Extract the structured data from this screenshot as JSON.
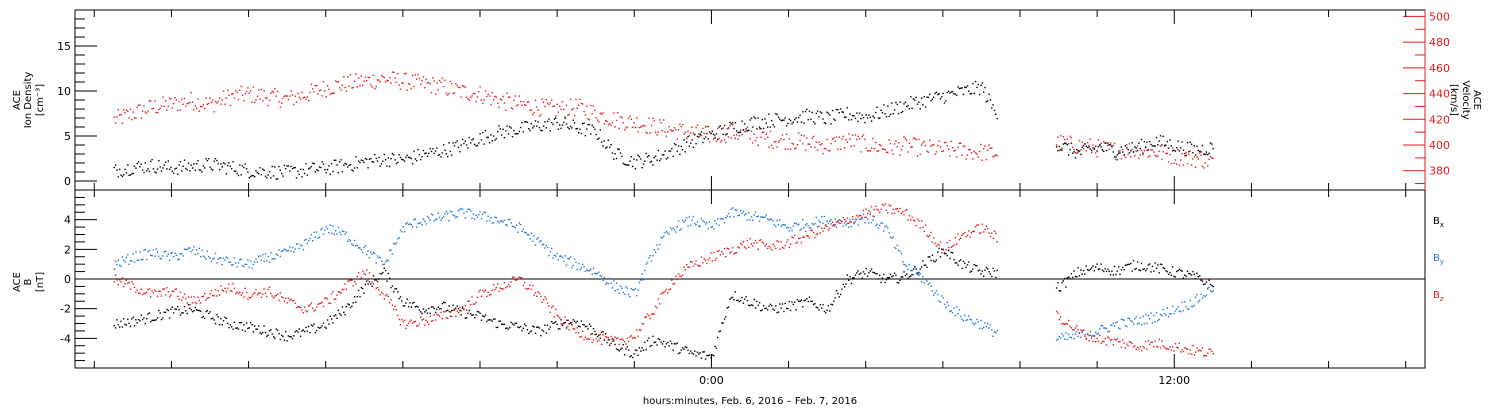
{
  "chart_data": [
    {
      "type": "scatter",
      "panel": "top",
      "ylabel_lines": [
        "ACE",
        "Ion Density",
        "[cm⁻³]"
      ],
      "y2label_lines": [
        "ACE",
        "Velocity",
        "[km/s]"
      ],
      "ylim": [
        -1,
        19
      ],
      "yticks": [
        0,
        5,
        10,
        15
      ],
      "y2lim": [
        365,
        505
      ],
      "y2ticks": [
        380,
        400,
        420,
        440,
        460,
        480,
        500
      ],
      "y2_color": "#e41a1c",
      "series": [
        {
          "color": "#000000",
          "axis": "left",
          "x": [
            -15.5,
            -15.0,
            -14.5,
            -14.0,
            -13.5,
            -13.0,
            -12.5,
            -12.0,
            -11.5,
            -11.0,
            -10.5,
            -10.0,
            -9.5,
            -9.0,
            -8.5,
            -8.0,
            -7.5,
            -7.0,
            -6.5,
            -6.0,
            -5.5,
            -5.0,
            -4.5,
            -4.0,
            -3.5,
            -3.0,
            -2.5,
            -2.0,
            -1.5,
            -1.0,
            -0.5,
            0.0,
            0.5,
            1.0,
            1.5,
            2.0,
            2.5,
            3.0,
            3.5,
            4.0,
            4.5,
            5.0,
            5.5,
            6.0,
            6.5,
            7.0,
            7.3,
            9.0,
            9.5,
            10.0,
            10.5,
            11.0,
            11.5,
            12.0,
            12.5,
            13.0
          ],
          "y": [
            1.2,
            1.6,
            1.8,
            1.5,
            1.7,
            1.9,
            1.6,
            1.2,
            1.1,
            1.0,
            1.3,
            1.5,
            1.8,
            2.2,
            2.5,
            2.4,
            3.0,
            3.4,
            4.0,
            4.8,
            5.5,
            5.8,
            6.2,
            6.5,
            6.0,
            5.5,
            3.0,
            2.2,
            2.6,
            3.5,
            4.5,
            5.2,
            6.0,
            6.5,
            6.8,
            7.0,
            7.3,
            7.0,
            7.5,
            7.2,
            7.8,
            8.5,
            9.0,
            9.5,
            10.0,
            10.5,
            8.0,
            4.0,
            3.2,
            3.8,
            3.5,
            3.7,
            4.5,
            4.0,
            3.5,
            3.8
          ]
        },
        {
          "color": "#e41a1c",
          "axis": "right",
          "x": [
            -15.5,
            -15.0,
            -14.5,
            -14.0,
            -13.5,
            -13.0,
            -12.5,
            -12.0,
            -11.5,
            -11.0,
            -10.5,
            -10.0,
            -9.5,
            -9.0,
            -8.5,
            -8.0,
            -7.5,
            -7.0,
            -6.5,
            -6.0,
            -5.5,
            -5.0,
            -4.5,
            -4.0,
            -3.5,
            -3.0,
            -2.5,
            -2.0,
            -1.5,
            -1.0,
            -0.5,
            0.0,
            0.5,
            1.0,
            1.5,
            2.0,
            2.5,
            3.0,
            3.5,
            4.0,
            4.5,
            5.0,
            5.5,
            6.0,
            6.5,
            7.0,
            7.3,
            9.0,
            9.5,
            10.0,
            10.5,
            11.0,
            11.5,
            12.0,
            12.5,
            13.0
          ],
          "y": [
            420,
            425,
            430,
            432,
            435,
            432,
            438,
            440,
            438,
            436,
            440,
            445,
            448,
            450,
            452,
            450,
            448,
            446,
            442,
            440,
            435,
            432,
            430,
            428,
            430,
            425,
            420,
            418,
            415,
            412,
            410,
            408,
            410,
            408,
            405,
            404,
            402,
            400,
            404,
            401,
            398,
            400,
            398,
            397,
            396,
            395,
            394,
            402,
            400,
            398,
            396,
            397,
            395,
            392,
            390,
            388
          ]
        }
      ]
    },
    {
      "type": "scatter",
      "panel": "bottom",
      "ylabel_lines": [
        "ACE",
        "B",
        "[nT]"
      ],
      "ylim": [
        -6,
        6
      ],
      "yticks": [
        -4,
        -2,
        0,
        2,
        4
      ],
      "zero_line": true,
      "legend": [
        {
          "base": "B",
          "sub": "x",
          "color": "#000000"
        },
        {
          "base": "B",
          "sub": "y",
          "color": "#1f78d6"
        },
        {
          "base": "B",
          "sub": "z",
          "color": "#e41a1c"
        }
      ],
      "series": [
        {
          "name": "Bx",
          "color": "#000000",
          "x": [
            -15.5,
            -15.0,
            -14.5,
            -14.0,
            -13.5,
            -13.0,
            -12.5,
            -12.0,
            -11.5,
            -11.0,
            -10.5,
            -10.0,
            -9.5,
            -9.0,
            -8.5,
            -8.0,
            -7.5,
            -7.0,
            -6.5,
            -6.0,
            -5.5,
            -5.0,
            -4.5,
            -4.0,
            -3.5,
            -3.0,
            -2.5,
            -2.0,
            -1.5,
            -1.0,
            -0.5,
            0.0,
            0.5,
            1.0,
            1.5,
            2.0,
            2.5,
            3.0,
            3.5,
            4.0,
            4.5,
            5.0,
            5.5,
            6.0,
            6.5,
            7.0,
            7.3,
            9.0,
            9.5,
            10.0,
            10.5,
            11.0,
            11.5,
            12.0,
            12.5,
            13.0
          ],
          "y": [
            -3.0,
            -2.8,
            -2.5,
            -2.2,
            -2.0,
            -2.5,
            -3.0,
            -3.2,
            -3.5,
            -3.8,
            -3.5,
            -3.0,
            -2.0,
            -0.5,
            0.5,
            -1.5,
            -2.0,
            -1.8,
            -2.2,
            -2.5,
            -3.0,
            -3.2,
            -3.5,
            -3.0,
            -2.8,
            -3.5,
            -4.5,
            -5.0,
            -4.0,
            -4.5,
            -5.0,
            -5.2,
            -1.0,
            -1.5,
            -2.0,
            -1.8,
            -1.5,
            -2.0,
            0.0,
            0.5,
            0.0,
            0.2,
            1.0,
            2.0,
            1.0,
            0.5,
            0.5,
            -0.5,
            0.5,
            0.8,
            0.6,
            1.0,
            0.8,
            0.5,
            0.2,
            -0.5
          ]
        },
        {
          "name": "By",
          "color": "#1f78d6",
          "x": [
            -15.5,
            -15.0,
            -14.5,
            -14.0,
            -13.5,
            -13.0,
            -12.5,
            -12.0,
            -11.5,
            -11.0,
            -10.5,
            -10.0,
            -9.5,
            -9.0,
            -8.5,
            -8.0,
            -7.5,
            -7.0,
            -6.5,
            -6.0,
            -5.5,
            -5.0,
            -4.5,
            -4.0,
            -3.5,
            -3.0,
            -2.5,
            -2.0,
            -1.5,
            -1.0,
            -0.5,
            0.0,
            0.5,
            1.0,
            1.5,
            2.0,
            2.5,
            3.0,
            3.5,
            4.0,
            4.5,
            5.0,
            5.5,
            6.0,
            6.5,
            7.0,
            7.3,
            9.0,
            9.5,
            10.0,
            10.5,
            11.0,
            11.5,
            12.0,
            12.5,
            13.0
          ],
          "y": [
            1.0,
            1.5,
            1.8,
            1.5,
            2.0,
            1.5,
            1.2,
            1.0,
            1.5,
            1.8,
            2.5,
            3.5,
            3.0,
            2.0,
            1.0,
            3.5,
            4.0,
            4.2,
            4.5,
            4.3,
            4.0,
            3.5,
            2.5,
            1.5,
            1.0,
            0.5,
            -0.5,
            -1.0,
            2.0,
            3.5,
            4.0,
            3.5,
            4.5,
            4.3,
            4.0,
            3.5,
            3.8,
            4.0,
            3.8,
            4.2,
            3.5,
            1.0,
            0.0,
            -1.5,
            -2.5,
            -3.0,
            -3.5,
            -4.0,
            -3.8,
            -3.5,
            -3.0,
            -2.8,
            -2.5,
            -2.0,
            -1.5,
            -0.5
          ]
        },
        {
          "name": "Bz",
          "color": "#e41a1c",
          "x": [
            -15.5,
            -15.0,
            -14.5,
            -14.0,
            -13.5,
            -13.0,
            -12.5,
            -12.0,
            -11.5,
            -11.0,
            -10.5,
            -10.0,
            -9.5,
            -9.0,
            -8.5,
            -8.0,
            -7.5,
            -7.0,
            -6.5,
            -6.0,
            -5.5,
            -5.0,
            -4.5,
            -4.0,
            -3.5,
            -3.0,
            -2.5,
            -2.0,
            -1.5,
            -1.0,
            -0.5,
            0.0,
            0.5,
            1.0,
            1.5,
            2.0,
            2.5,
            3.0,
            3.5,
            4.0,
            4.5,
            5.0,
            5.5,
            6.0,
            6.5,
            7.0,
            7.3,
            9.0,
            9.5,
            10.0,
            10.5,
            11.0,
            11.5,
            12.0,
            12.5,
            13.0
          ],
          "y": [
            0.0,
            -0.5,
            -1.0,
            -0.8,
            -1.5,
            -1.0,
            -0.5,
            -1.0,
            -0.8,
            -1.5,
            -2.0,
            -1.5,
            -0.5,
            0.5,
            -1.0,
            -3.0,
            -2.8,
            -2.5,
            -2.0,
            -1.0,
            -0.5,
            0.0,
            -1.0,
            -2.5,
            -3.5,
            -4.0,
            -4.2,
            -3.8,
            -2.0,
            0.0,
            1.0,
            1.5,
            2.0,
            2.5,
            2.2,
            2.5,
            3.0,
            3.5,
            4.0,
            4.5,
            4.8,
            4.5,
            3.5,
            2.0,
            3.0,
            3.5,
            3.0,
            -2.5,
            -3.5,
            -4.0,
            -4.2,
            -4.5,
            -4.3,
            -4.5,
            -4.8,
            -5.0
          ]
        }
      ]
    }
  ],
  "time_axis": {
    "xlim": [
      -16.5,
      18.5
    ],
    "major_ticks": [
      0,
      12
    ],
    "major_tick_labels": [
      "0:00",
      "12:00"
    ],
    "minor_tick_step_hours": 2,
    "xlabel": "hours:minutes, Feb.  6, 2016 – Feb.  7, 2016"
  }
}
